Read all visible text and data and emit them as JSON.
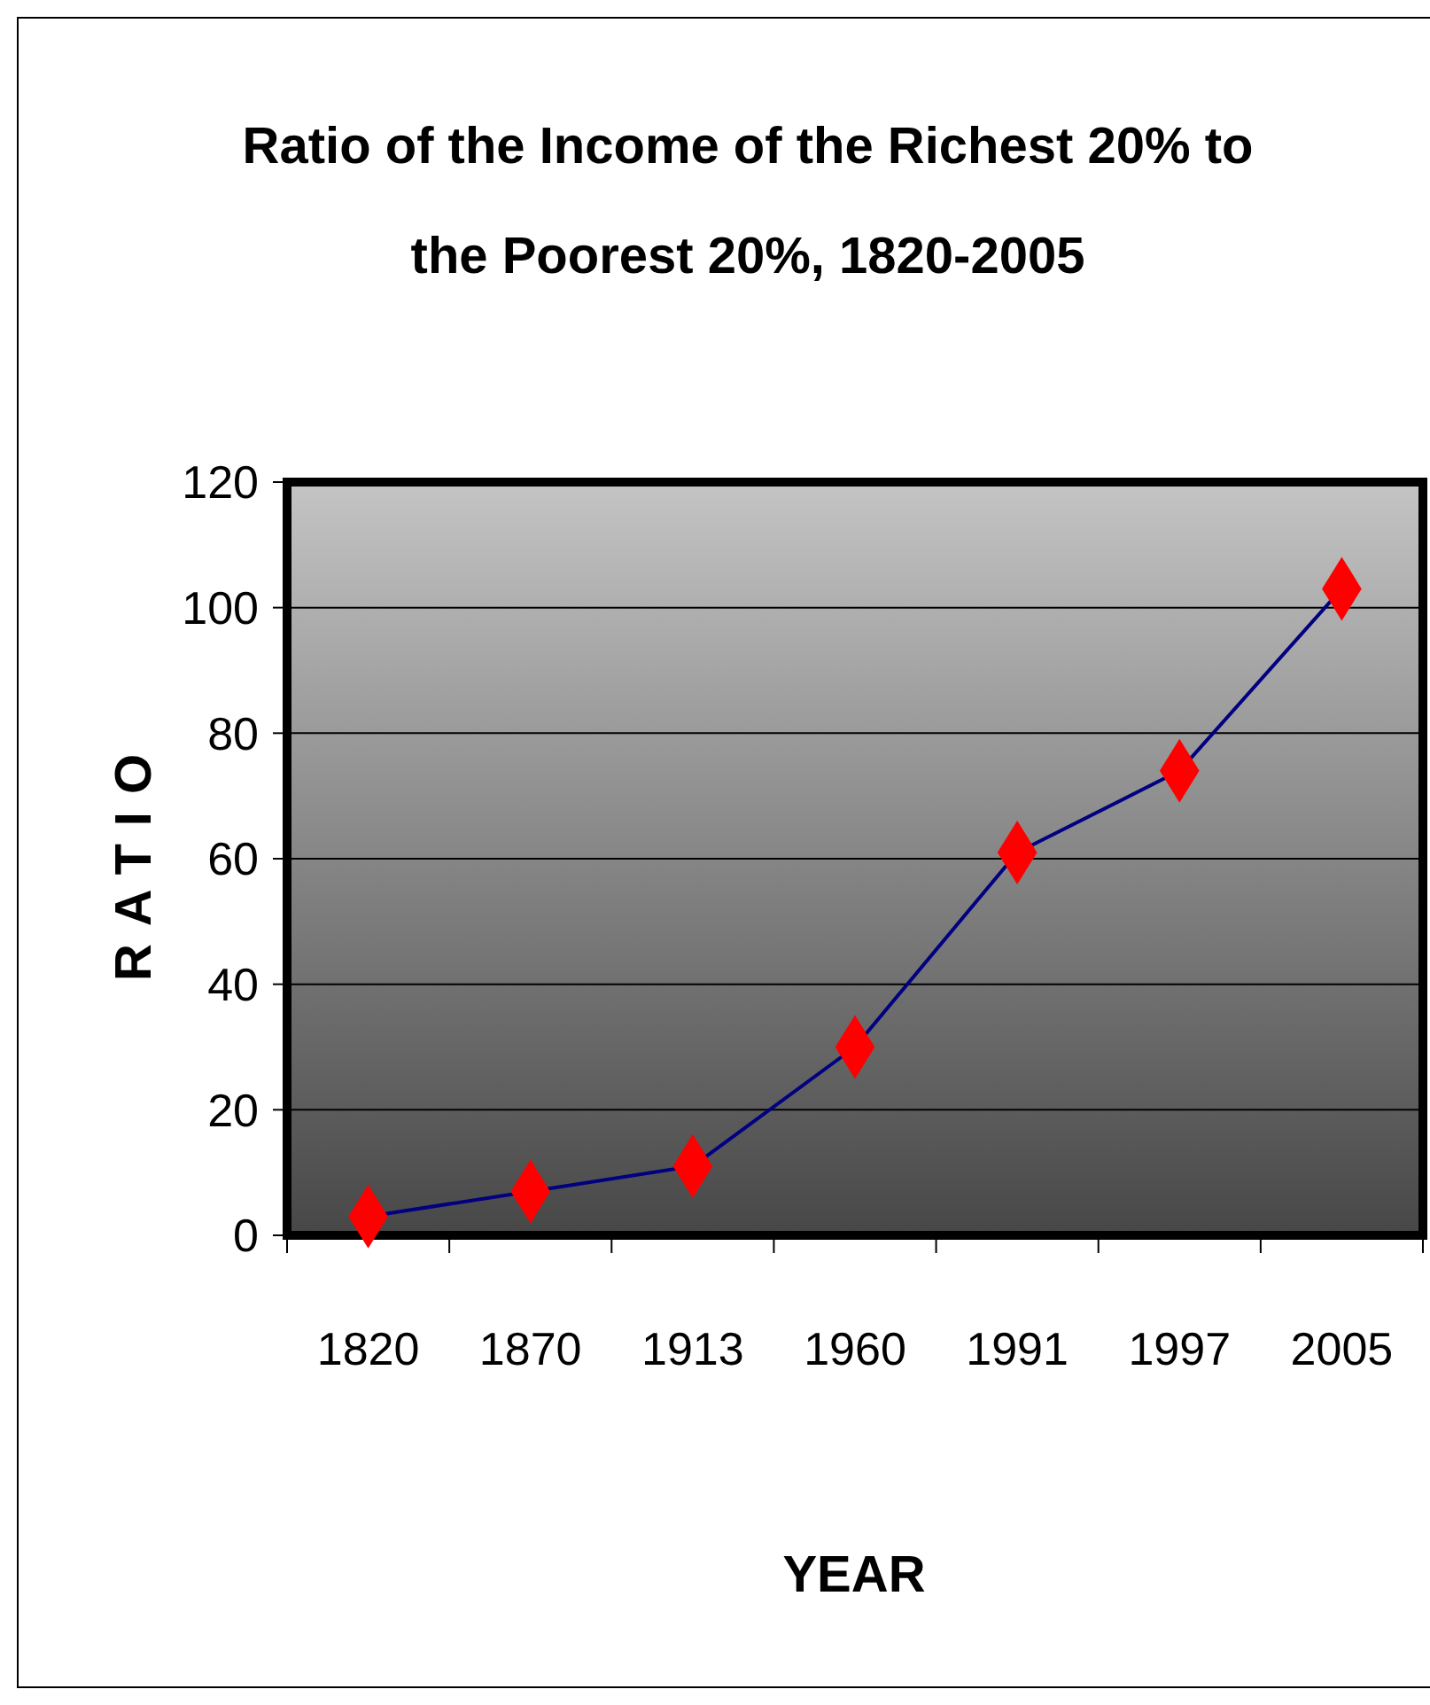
{
  "chart_data": {
    "type": "line",
    "title": "Ratio of the Income of the Richest 20% to the Poorest 20%, 1820-2005",
    "xlabel": "YEAR",
    "ylabel": "RATIO",
    "categories": [
      "1820",
      "1870",
      "1913",
      "1960",
      "1991",
      "1997",
      "2005"
    ],
    "series": [
      {
        "color": "#000080",
        "colors": [
          "#ff0000",
          "#ff0000",
          "#ff0000",
          "#ff0000",
          "#ff0000",
          "#ff0000",
          "#ff0000"
        ],
        "values": [
          3,
          7,
          11,
          30,
          61,
          74,
          103
        ]
      }
    ],
    "ylim": [
      0,
      120
    ],
    "yticks": [
      0,
      20,
      40,
      60,
      80,
      100,
      120
    ],
    "grid": "y",
    "marker": "diamond",
    "line_style": "solid"
  }
}
